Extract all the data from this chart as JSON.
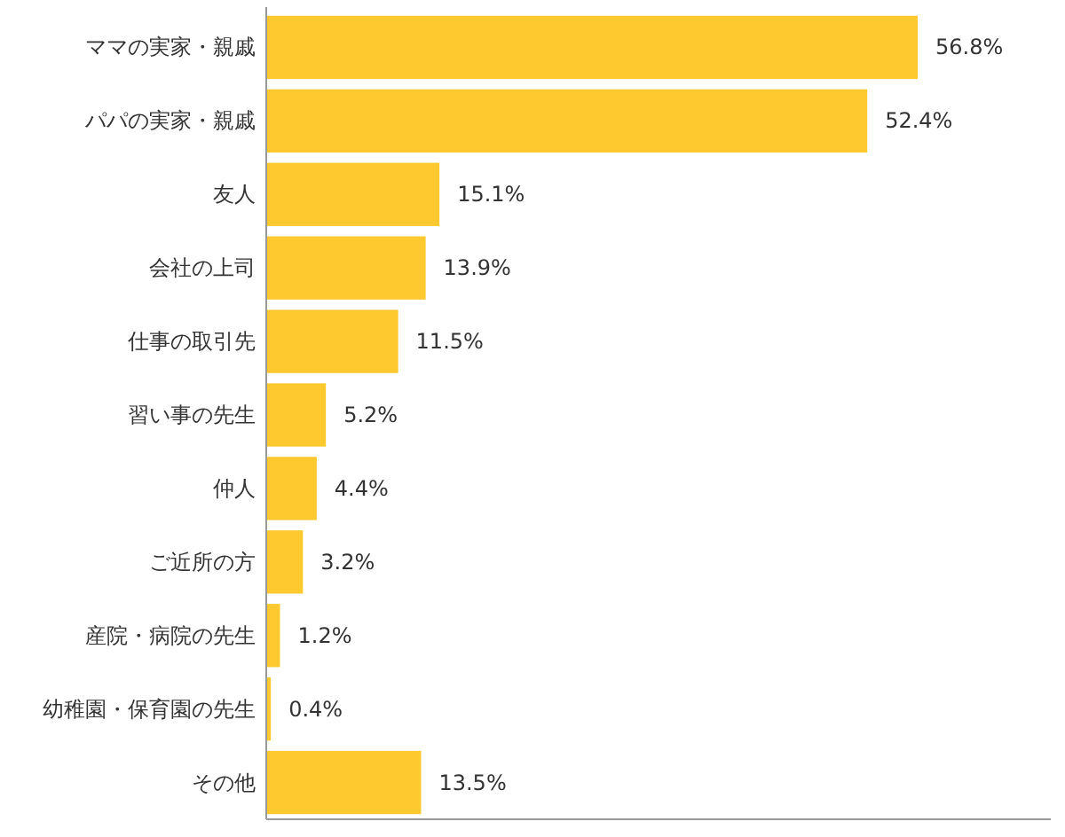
{
  "chart_data": {
    "type": "bar",
    "orientation": "horizontal",
    "color": "#fdc92f",
    "categories": [
      "ママの実家・親戚",
      "パパの実家・親戚",
      "友人",
      "会社の上司",
      "仕事の取引先",
      "習い事の先生",
      "仲人",
      "ご近所の方",
      "産院・病院の先生",
      "幼稚園・保育園の先生",
      "その他"
    ],
    "values": [
      56.8,
      52.4,
      15.1,
      13.9,
      11.5,
      5.2,
      4.4,
      3.2,
      1.2,
      0.4,
      13.5
    ],
    "value_labels": [
      "56.8%",
      "52.4%",
      "15.1%",
      "13.9%",
      "11.5%",
      "5.2%",
      "4.4%",
      "3.2%",
      "1.2%",
      "0.4%",
      "13.5%"
    ]
  }
}
